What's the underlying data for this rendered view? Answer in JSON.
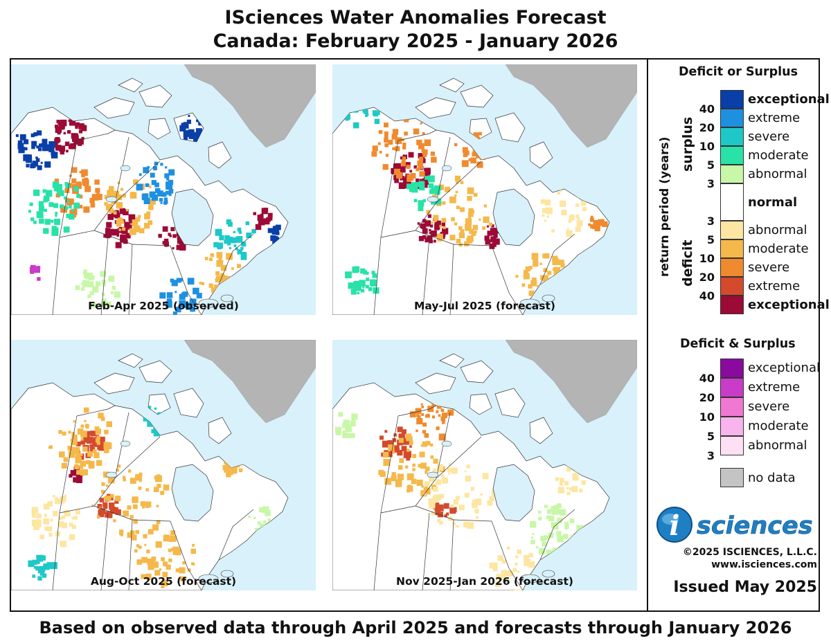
{
  "header": {
    "title_line1": "ISciences Water Anomalies Forecast",
    "title_line2": "Canada: February 2025 - January 2026"
  },
  "maps": [
    {
      "caption": "Feb-Apr 2025 (observed)",
      "pattern": "observed"
    },
    {
      "caption": "May-Jul 2025 (forecast)",
      "pattern": "forecast_summer"
    },
    {
      "caption": "Aug-Oct 2025 (forecast)",
      "pattern": "forecast_autumn"
    },
    {
      "caption": "Nov 2025-Jan 2026 (forecast)",
      "pattern": "forecast_winter"
    }
  ],
  "legend": {
    "title1": "Deficit or Surplus",
    "axis_label": "return period (years)",
    "surplus_label": "surplus",
    "deficit_label": "deficit",
    "normal_label": "normal",
    "surplus_items": [
      {
        "label": "exceptional",
        "color": "#0a3fa8",
        "bold": true
      },
      {
        "label": "extreme",
        "color": "#1e90e0",
        "bold": false
      },
      {
        "label": "severe",
        "color": "#1ec8c8",
        "bold": false
      },
      {
        "label": "moderate",
        "color": "#28e2a8",
        "bold": false
      },
      {
        "label": "abnormal",
        "color": "#c8f7a8",
        "bold": false
      }
    ],
    "surplus_numbers": [
      "40",
      "20",
      "10",
      "5",
      "3"
    ],
    "deficit_items": [
      {
        "label": "abnormal",
        "color": "#fde6a2",
        "bold": false
      },
      {
        "label": "moderate",
        "color": "#f5b84a",
        "bold": false
      },
      {
        "label": "severe",
        "color": "#f08a2e",
        "bold": false
      },
      {
        "label": "extreme",
        "color": "#d44a2c",
        "bold": false
      },
      {
        "label": "exceptional",
        "color": "#9c0a36",
        "bold": true
      }
    ],
    "deficit_numbers": [
      "3",
      "5",
      "10",
      "20",
      "40"
    ],
    "title2": "Deficit & Surplus",
    "both_items": [
      {
        "label": "exceptional",
        "color": "#8a0aa0"
      },
      {
        "label": "extreme",
        "color": "#c83cc8"
      },
      {
        "label": "severe",
        "color": "#f078d2"
      },
      {
        "label": "moderate",
        "color": "#f8b4ec"
      },
      {
        "label": "abnormal",
        "color": "#fde0f4"
      }
    ],
    "both_numbers": [
      "40",
      "20",
      "10",
      "5",
      "3"
    ],
    "nodata_label": "no data",
    "nodata_color": "#c4c4c4"
  },
  "branding": {
    "logo_letter": "i",
    "logo_word": "sciences",
    "copyright": "©2025 ISCIENCES, L.L.C.",
    "website": "www.isciences.com",
    "issued": "Issued May 2025"
  },
  "footer": {
    "text": "Based on observed data through April 2025 and forecasts through January 2026"
  },
  "colors": {
    "ocean": "#d8f1fb",
    "land": "#ffffff",
    "greenland": "#b4b4b4",
    "boundary": "#333333"
  }
}
